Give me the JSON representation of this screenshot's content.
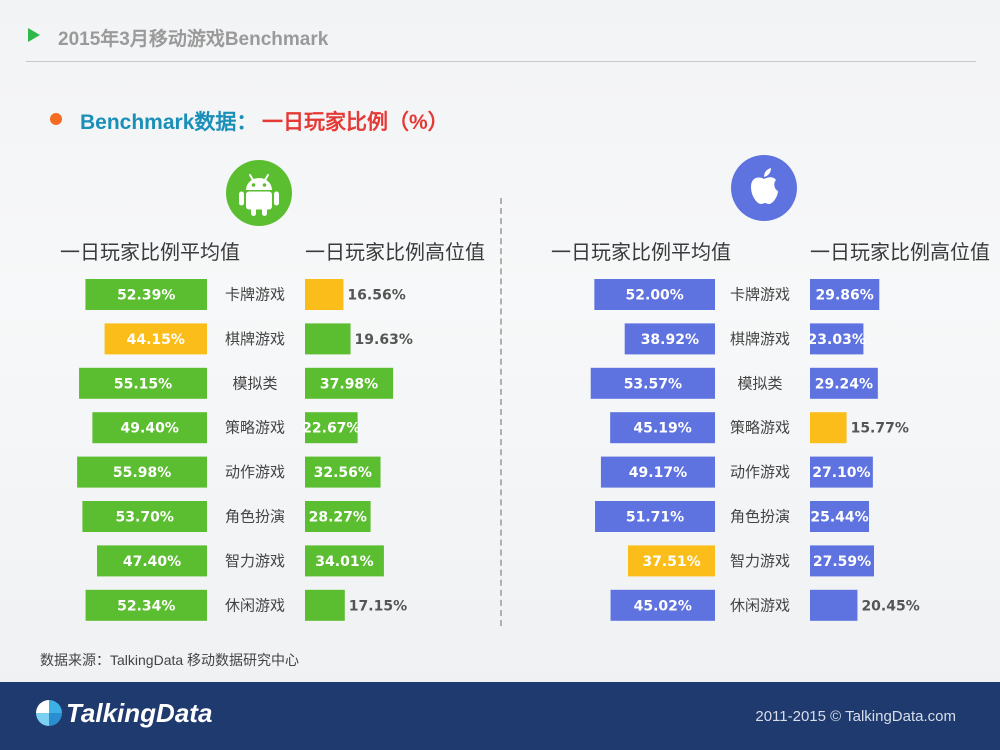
{
  "header": {
    "title": "2015年3月移动游戏Benchmark"
  },
  "subtitle": {
    "part1": "Benchmark数据：",
    "part2": "一日玩家比例（%）"
  },
  "android": {
    "icon": "android-icon",
    "avg_heading": "一日玩家比例平均值",
    "high_heading": "一日玩家比例高位值"
  },
  "ios": {
    "icon": "apple-icon",
    "avg_heading": "一日玩家比例平均值",
    "high_heading": "一日玩家比例高位值"
  },
  "colors": {
    "android": "#5bbd30",
    "ios": "#5e72e0",
    "highlight": "#fbbd1a"
  },
  "chart_data": [
    {
      "type": "bar",
      "platform": "Android",
      "categories": [
        "卡牌游戏",
        "棋牌游戏",
        "模拟类",
        "策略游戏",
        "动作游戏",
        "角色扮演",
        "智力游戏",
        "休闲游戏"
      ],
      "series": [
        {
          "name": "一日玩家比例平均值",
          "values": [
            52.39,
            44.15,
            55.15,
            49.4,
            55.98,
            53.7,
            47.4,
            52.34
          ],
          "labels": [
            "52.39%",
            "44.15%",
            "55.15%",
            "49.40%",
            "55.98%",
            "53.70%",
            "47.40%",
            "52.34%"
          ],
          "highlight": [
            1
          ]
        },
        {
          "name": "一日玩家比例高位值",
          "values": [
            16.56,
            19.63,
            37.98,
            22.67,
            32.56,
            28.27,
            34.01,
            17.15
          ],
          "labels": [
            "16.56%",
            "19.63%",
            "37.98%",
            "22.67%",
            "32.56%",
            "28.27%",
            "34.01%",
            "17.15%"
          ],
          "highlight": [
            0
          ]
        }
      ]
    },
    {
      "type": "bar",
      "platform": "iOS",
      "categories": [
        "卡牌游戏",
        "棋牌游戏",
        "模拟类",
        "策略游戏",
        "动作游戏",
        "角色扮演",
        "智力游戏",
        "休闲游戏"
      ],
      "series": [
        {
          "name": "一日玩家比例平均值",
          "values": [
            52.0,
            38.92,
            53.57,
            45.19,
            49.17,
            51.71,
            37.51,
            45.02
          ],
          "labels": [
            "52.00%",
            "38.92%",
            "53.57%",
            "45.19%",
            "49.17%",
            "51.71%",
            "37.51%",
            "45.02%"
          ],
          "highlight": [
            6
          ]
        },
        {
          "name": "一日玩家比例高位值",
          "values": [
            29.86,
            23.03,
            29.24,
            15.77,
            27.1,
            25.44,
            27.59,
            20.45
          ],
          "labels": [
            "29.86%",
            "23.03%",
            "29.24%",
            "15.77%",
            "27.10%",
            "25.44%",
            "27.59%",
            "20.45%"
          ],
          "highlight": [
            3
          ]
        }
      ]
    }
  ],
  "source": "数据来源：TalkingData 移动数据研究中心",
  "footer": {
    "brand": "TalkingData",
    "copyright": "2011-2015 © TalkingData.com"
  }
}
